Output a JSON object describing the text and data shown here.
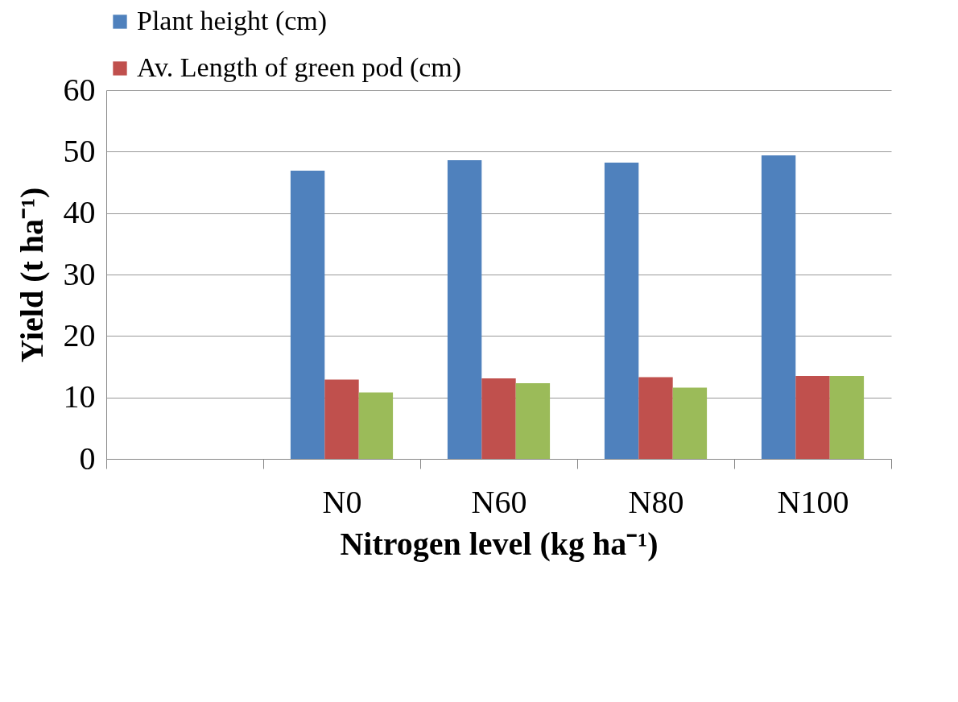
{
  "chart_data": {
    "type": "bar",
    "xlabel": "Nitrogen level (kg ha⁻¹)",
    "ylabel": "Yield (t ha⁻¹)",
    "categories": [
      null,
      "N0",
      "N60",
      "N80",
      "N100"
    ],
    "series": [
      {
        "name": "Plant height (cm)",
        "color": "#4f81bd",
        "values": [
          null,
          46.9,
          48.6,
          48.2,
          49.4
        ]
      },
      {
        "name": "Av. Length of green pod (cm)",
        "color": "#c0504d",
        "values": [
          null,
          12.9,
          13.1,
          13.3,
          13.5
        ]
      },
      {
        "color": "#9bbb59",
        "values": [
          null,
          10.8,
          12.3,
          11.6,
          13.5
        ]
      }
    ],
    "ylim": [
      0,
      60
    ],
    "yticks": [
      0,
      10,
      20,
      30,
      40,
      50,
      60
    ],
    "grid": "y",
    "legend": "top"
  }
}
